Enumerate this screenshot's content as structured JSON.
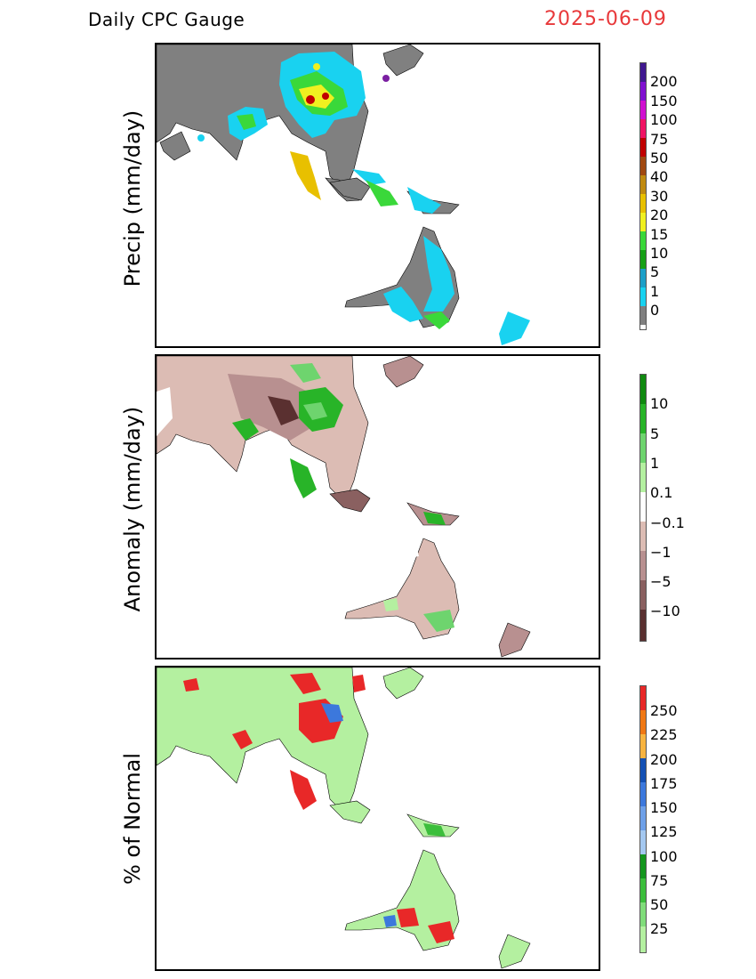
{
  "header": {
    "title": "Daily CPC Gauge",
    "date": "2025-06-09"
  },
  "panels": [
    {
      "name": "precip",
      "ylabel": "Precip (mm/day)",
      "colors": [
        "#808080",
        "#19d2f0",
        "#1c9fc8",
        "#16a016",
        "#3ad83a",
        "#f0f020",
        "#e8c000",
        "#c08a10",
        "#a04810",
        "#c00000",
        "#f01464",
        "#d010d0",
        "#8010d0",
        "#401890"
      ],
      "tick_labels": [
        "0",
        "1",
        "5",
        "10",
        "15",
        "20",
        "30",
        "40",
        "50",
        "75",
        "100",
        "150",
        "200"
      ]
    },
    {
      "name": "anomaly",
      "ylabel": "Anomaly (mm/day)",
      "colors": [
        "#5a3030",
        "#8a6060",
        "#b89090",
        "#dcbcb4",
        "#ffffff",
        "#b4f0a0",
        "#6ed46e",
        "#28b428",
        "#108a10"
      ],
      "tick_labels": [
        "−10",
        "−5",
        "−1",
        "−0.1",
        "0.1",
        "1",
        "5",
        "10"
      ]
    },
    {
      "name": "pct-normal",
      "ylabel": "% of Normal",
      "colors": [
        "#b4f0a0",
        "#80dc7a",
        "#3cbe3c",
        "#14961e",
        "#a4c8f0",
        "#6ea0e8",
        "#3c78dc",
        "#1450b4",
        "#f8b440",
        "#f07814",
        "#e82828"
      ],
      "tick_labels": [
        "25",
        "50",
        "75",
        "100",
        "125",
        "150",
        "175",
        "200",
        "225",
        "250"
      ]
    }
  ]
}
